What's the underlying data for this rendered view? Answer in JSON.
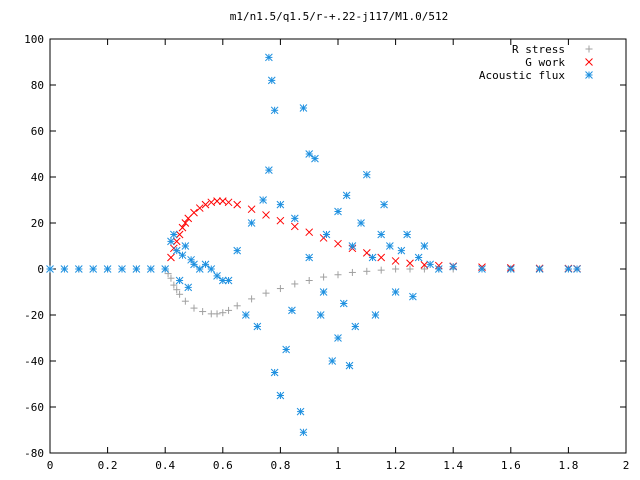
{
  "chart_data": {
    "type": "scatter",
    "title": "m1/n1.5/q1.5/r-+.22-j117/M1.0/512",
    "xlabel": "",
    "ylabel": "",
    "xlim": [
      0,
      2
    ],
    "ylim": [
      -80,
      100
    ],
    "xticks": [
      0,
      0.2,
      0.4,
      0.6,
      0.8,
      1,
      1.2,
      1.4,
      1.6,
      1.8,
      2
    ],
    "xtick_labels": [
      "0",
      "0.2",
      "0.4",
      "0.6",
      "0.8",
      "1",
      "1.2",
      "1.4",
      "1.6",
      "1.8",
      "2"
    ],
    "yticks": [
      -80,
      -60,
      -40,
      -20,
      0,
      20,
      40,
      60,
      80,
      100
    ],
    "ytick_labels": [
      "-80",
      "-60",
      "-40",
      "-20",
      "0",
      "20",
      "40",
      "60",
      "80",
      "100"
    ],
    "grid": false,
    "legend_position": "top-right",
    "series": [
      {
        "name": "R stress",
        "marker": "plus",
        "color": "#a0a0a0",
        "x": [
          0,
          0.1,
          0.2,
          0.3,
          0.4,
          0.41,
          0.42,
          0.43,
          0.44,
          0.45,
          0.47,
          0.5,
          0.53,
          0.56,
          0.58,
          0.6,
          0.62,
          0.65,
          0.7,
          0.75,
          0.8,
          0.85,
          0.9,
          0.95,
          1.0,
          1.05,
          1.1,
          1.15,
          1.2,
          1.25,
          1.3,
          1.35,
          1.4,
          1.5,
          1.6,
          1.7,
          1.8,
          1.83
        ],
        "y": [
          0,
          0,
          0,
          0,
          0,
          -2,
          -4,
          -7,
          -9,
          -11,
          -14,
          -17,
          -18.5,
          -19.5,
          -19.5,
          -19,
          -18,
          -16,
          -13,
          -10.5,
          -8.5,
          -6.5,
          -5,
          -3.5,
          -2.5,
          -1.5,
          -1,
          -0.5,
          0,
          0,
          0,
          0,
          0,
          0,
          0,
          0,
          0,
          0
        ]
      },
      {
        "name": "G work",
        "marker": "cross",
        "color": "#ff0000",
        "x": [
          0.42,
          0.43,
          0.44,
          0.45,
          0.46,
          0.47,
          0.48,
          0.5,
          0.52,
          0.54,
          0.56,
          0.58,
          0.6,
          0.62,
          0.65,
          0.7,
          0.75,
          0.8,
          0.85,
          0.9,
          0.95,
          1.0,
          1.05,
          1.1,
          1.15,
          1.2,
          1.25,
          1.3,
          1.35,
          1.4,
          1.5,
          1.6,
          1.7,
          1.8,
          1.83
        ],
        "y": [
          5,
          9,
          12,
          15,
          18,
          20,
          22,
          24.5,
          26.5,
          28,
          29,
          29.5,
          29.5,
          29,
          28,
          26,
          23.5,
          21,
          18.5,
          16,
          13.5,
          11,
          9,
          7,
          5,
          3.5,
          2.5,
          1.8,
          1.5,
          1.2,
          0.8,
          0.5,
          0.3,
          0.2,
          0.1
        ]
      },
      {
        "name": "Acoustic flux",
        "marker": "star",
        "color": "#1e90e0",
        "x": [
          0,
          0.05,
          0.1,
          0.15,
          0.2,
          0.25,
          0.3,
          0.35,
          0.4,
          0.42,
          0.43,
          0.44,
          0.45,
          0.46,
          0.47,
          0.48,
          0.49,
          0.5,
          0.52,
          0.54,
          0.56,
          0.58,
          0.6,
          0.62,
          0.65,
          0.68,
          0.7,
          0.72,
          0.74,
          0.76,
          0.76,
          0.77,
          0.78,
          0.78,
          0.8,
          0.8,
          0.82,
          0.84,
          0.85,
          0.87,
          0.88,
          0.88,
          0.9,
          0.9,
          0.92,
          0.94,
          0.95,
          0.96,
          0.98,
          1.0,
          1.0,
          1.02,
          1.03,
          1.04,
          1.05,
          1.06,
          1.08,
          1.1,
          1.12,
          1.13,
          1.15,
          1.16,
          1.18,
          1.2,
          1.22,
          1.24,
          1.26,
          1.28,
          1.3,
          1.32,
          1.35,
          1.4,
          1.5,
          1.6,
          1.7,
          1.8,
          1.83
        ],
        "y": [
          0,
          0,
          0,
          0,
          0,
          0,
          0,
          0,
          0,
          12,
          15,
          8,
          -5,
          6,
          10,
          -8,
          4,
          2,
          0,
          2,
          0,
          -3,
          -5,
          -5,
          8,
          -20,
          20,
          -25,
          30,
          92,
          43,
          82,
          -45,
          69,
          28,
          -55,
          -35,
          -18,
          22,
          -62,
          -71,
          70,
          50,
          5,
          48,
          -20,
          -10,
          15,
          -40,
          25,
          -30,
          -15,
          32,
          -42,
          10,
          -25,
          20,
          41,
          5,
          -20,
          15,
          28,
          10,
          -10,
          8,
          15,
          -12,
          5,
          10,
          2,
          0,
          1,
          0,
          0,
          0,
          0,
          0
        ]
      }
    ]
  }
}
